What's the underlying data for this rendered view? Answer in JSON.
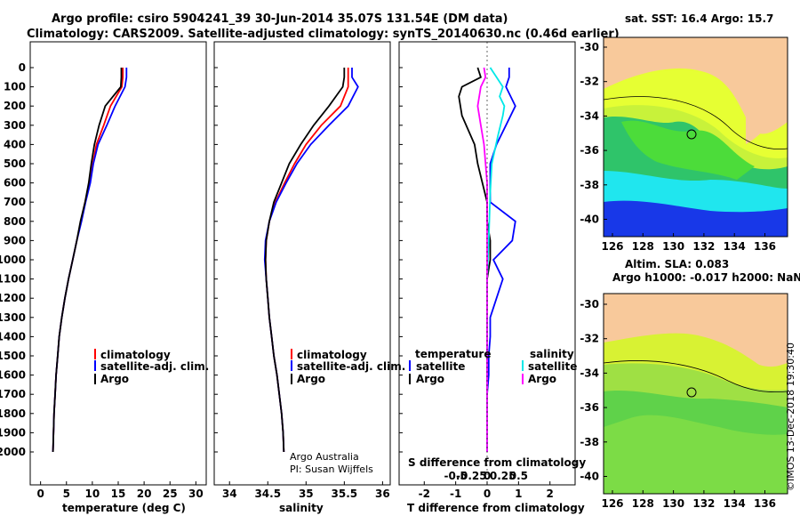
{
  "title": {
    "line1": "Argo profile: csiro 5904241_39 30-Jun-2014 35.07S 131.54E (DM data)",
    "line2": "Climatology: CARS2009. Satellite-adjusted climatology: synTS_20140630.nc (0.46d earlier)"
  },
  "colors": {
    "climatology": "#ff0000",
    "satellite": "#0000ff",
    "argo": "#000000",
    "t_satellite": "#0000ff",
    "s_satellite": "#00e8e8",
    "s_argo": "#ff00ff"
  },
  "depth_ticks": [
    "0",
    "100",
    "200",
    "300",
    "400",
    "500",
    "600",
    "700",
    "800",
    "900",
    "1000",
    "1100",
    "1200",
    "1300",
    "1400",
    "1500",
    "1600",
    "1700",
    "1800",
    "1900",
    "2000"
  ],
  "panel_temp": {
    "xlabel": "temperature (deg C)",
    "ticks": [
      "0",
      "5",
      "10",
      "15",
      "20",
      "25",
      "30"
    ],
    "legend": [
      "climatology",
      "satellite-adj. clim.",
      "Argo"
    ]
  },
  "panel_sal": {
    "xlabel": "salinity",
    "ticks": [
      "34",
      "34.5",
      "35",
      "35.5",
      "36"
    ],
    "legend": [
      "climatology",
      "satellite-adj. clim.",
      "Argo"
    ],
    "credit1": "Argo Australia",
    "credit2": "PI: Susan Wijffels"
  },
  "panel_diff": {
    "xlabel": "T difference from climatology",
    "ticks": [
      "-2",
      "-1",
      "0",
      "1",
      "2"
    ],
    "s_label": "S difference from climatology",
    "s_ticks": [
      "-0.5",
      "-0.25",
      "0",
      "0.25",
      "0.5"
    ],
    "legend_t_head": "temperature",
    "legend_t": [
      "satellite",
      "Argo"
    ],
    "legend_s_head": "salinity",
    "legend_s": [
      "satellite",
      "Argo"
    ]
  },
  "map_top": {
    "title": "sat. SST: 16.4 Argo: 15.7",
    "lat_ticks": [
      "-30",
      "-32",
      "-34",
      "-36",
      "-38",
      "-40"
    ],
    "lon_ticks": [
      "126",
      "128",
      "130",
      "132",
      "134",
      "136"
    ]
  },
  "map_bottom": {
    "title1": "Altim. SLA: 0.083",
    "title2": "Argo h1000: -0.017 h2000: NaN",
    "lat_ticks": [
      "-30",
      "-32",
      "-34",
      "-36",
      "-38",
      "-40"
    ],
    "lon_ticks": [
      "126",
      "128",
      "130",
      "132",
      "134",
      "136"
    ]
  },
  "stamp": "©IMOS 13-Dec-2018 19:30:40",
  "chart_data": [
    {
      "type": "line",
      "name": "temperature profile",
      "xlabel": "temperature (deg C)",
      "xlim": [
        -2,
        32
      ],
      "ylim": [
        2060,
        0
      ],
      "series": [
        {
          "name": "climatology",
          "x": [
            15.9,
            15.9,
            15.7,
            13.5,
            12.2,
            10.8,
            10.1,
            9.5,
            8.6,
            7.8,
            7.0,
            6.2,
            5.4,
            4.7,
            4.1,
            3.6,
            3.3,
            3.0,
            2.8,
            2.6,
            2.5,
            2.4
          ],
          "y": [
            0,
            50,
            100,
            200,
            300,
            400,
            500,
            600,
            700,
            800,
            900,
            1000,
            1100,
            1200,
            1300,
            1400,
            1500,
            1600,
            1700,
            1800,
            1900,
            2000
          ]
        },
        {
          "name": "satellite-adj. clim.",
          "x": [
            16.6,
            16.6,
            16.3,
            14.4,
            12.8,
            11.1,
            10.2,
            9.6,
            8.7,
            7.9,
            7.0,
            6.2,
            5.4,
            4.7,
            4.1,
            3.6,
            3.3,
            3.0,
            2.8,
            2.6,
            2.5,
            2.4
          ],
          "y": [
            0,
            50,
            100,
            200,
            300,
            400,
            500,
            600,
            700,
            800,
            900,
            1000,
            1100,
            1200,
            1300,
            1400,
            1500,
            1600,
            1700,
            1800,
            1900,
            2000
          ]
        },
        {
          "name": "Argo",
          "x": [
            15.6,
            15.6,
            15.5,
            12.5,
            11.3,
            10.4,
            9.8,
            9.3,
            8.6,
            7.7,
            7.0,
            6.2,
            5.4,
            4.7,
            4.1,
            3.6,
            3.3,
            3.0,
            2.8,
            2.6,
            2.5,
            2.4
          ],
          "y": [
            0,
            50,
            100,
            200,
            300,
            400,
            500,
            600,
            700,
            800,
            900,
            1000,
            1100,
            1200,
            1300,
            1400,
            1500,
            1600,
            1700,
            1800,
            1900,
            2000
          ]
        }
      ]
    },
    {
      "type": "line",
      "name": "salinity profile",
      "xlabel": "salinity",
      "xlim": [
        33.8,
        36.1
      ],
      "ylim": [
        2060,
        0
      ],
      "series": [
        {
          "name": "climatology",
          "x": [
            35.55,
            35.55,
            35.55,
            35.45,
            35.2,
            35.0,
            34.85,
            34.72,
            34.6,
            34.52,
            34.48,
            34.47,
            34.48,
            34.5,
            34.52,
            34.55,
            34.58,
            34.62,
            34.65,
            34.68,
            34.7,
            34.71
          ],
          "y": [
            0,
            50,
            100,
            200,
            300,
            400,
            500,
            600,
            700,
            800,
            900,
            1000,
            1100,
            1200,
            1300,
            1400,
            1500,
            1600,
            1700,
            1800,
            1900,
            2000
          ]
        },
        {
          "name": "satellite-adj. clim.",
          "x": [
            35.6,
            35.6,
            35.68,
            35.55,
            35.3,
            35.06,
            34.88,
            34.74,
            34.61,
            34.52,
            34.47,
            34.46,
            34.48,
            34.5,
            34.52,
            34.55,
            34.58,
            34.62,
            34.65,
            34.68,
            34.7,
            34.71
          ],
          "y": [
            0,
            50,
            100,
            200,
            300,
            400,
            500,
            600,
            700,
            800,
            900,
            1000,
            1100,
            1200,
            1300,
            1400,
            1500,
            1600,
            1700,
            1800,
            1900,
            2000
          ]
        },
        {
          "name": "Argo",
          "x": [
            35.5,
            35.5,
            35.48,
            35.3,
            35.1,
            34.93,
            34.78,
            34.68,
            34.58,
            34.52,
            34.48,
            34.47,
            34.48,
            34.5,
            34.52,
            34.55,
            34.58,
            34.62,
            34.65,
            34.68,
            34.7,
            34.71
          ],
          "y": [
            0,
            50,
            100,
            200,
            300,
            400,
            500,
            600,
            700,
            800,
            900,
            1000,
            1100,
            1200,
            1300,
            1400,
            1500,
            1600,
            1700,
            1800,
            1900,
            2000
          ]
        }
      ]
    },
    {
      "type": "line",
      "name": "difference from climatology",
      "xlabel": "T difference from climatology",
      "xlim": [
        -2.8,
        2.8
      ],
      "ylim": [
        2060,
        0
      ],
      "series": [
        {
          "name": "temperature satellite",
          "x": [
            0.7,
            0.7,
            0.6,
            0.9,
            0.6,
            0.3,
            0.1,
            0.1,
            0.1,
            0.9,
            0.8,
            0.2,
            0.5,
            0.3,
            0.1,
            0.1,
            0.05,
            0.05,
            0.0,
            0.0,
            0.0
          ],
          "y": [
            0,
            50,
            100,
            200,
            300,
            400,
            500,
            600,
            700,
            800,
            900,
            1000,
            1100,
            1200,
            1300,
            1400,
            1500,
            1600,
            1700,
            1800,
            2000
          ]
        },
        {
          "name": "temperature Argo",
          "x": [
            -0.3,
            -0.2,
            -0.8,
            -0.9,
            -0.8,
            -0.4,
            -0.3,
            -0.15,
            0.0,
            0.0,
            0.1,
            0.1,
            0.0,
            0.0,
            0.0,
            0.0,
            0.0,
            0.0,
            0.0
          ],
          "y": [
            0,
            50,
            100,
            150,
            250,
            400,
            500,
            600,
            700,
            800,
            900,
            1000,
            1100,
            1200,
            1400,
            1600,
            1800,
            1900,
            2000
          ]
        },
        {
          "name": "salinity satellite",
          "x": [
            0.1,
            0.3,
            0.5,
            0.4,
            0.55,
            0.5,
            0.35,
            0.15,
            0.1,
            0.05,
            0.0,
            0.0,
            0.0,
            0.0,
            0.0
          ],
          "y": [
            0,
            50,
            100,
            150,
            200,
            250,
            350,
            500,
            650,
            900,
            1100,
            1400,
            1600,
            1800,
            2000
          ]
        },
        {
          "name": "salinity Argo",
          "x": [
            -0.1,
            -0.05,
            -0.2,
            -0.3,
            -0.2,
            -0.1,
            0.0,
            0.0,
            0.0,
            0.0,
            0.0
          ],
          "y": [
            0,
            50,
            100,
            200,
            300,
            400,
            600,
            900,
            1300,
            1700,
            2000
          ]
        }
      ]
    }
  ]
}
